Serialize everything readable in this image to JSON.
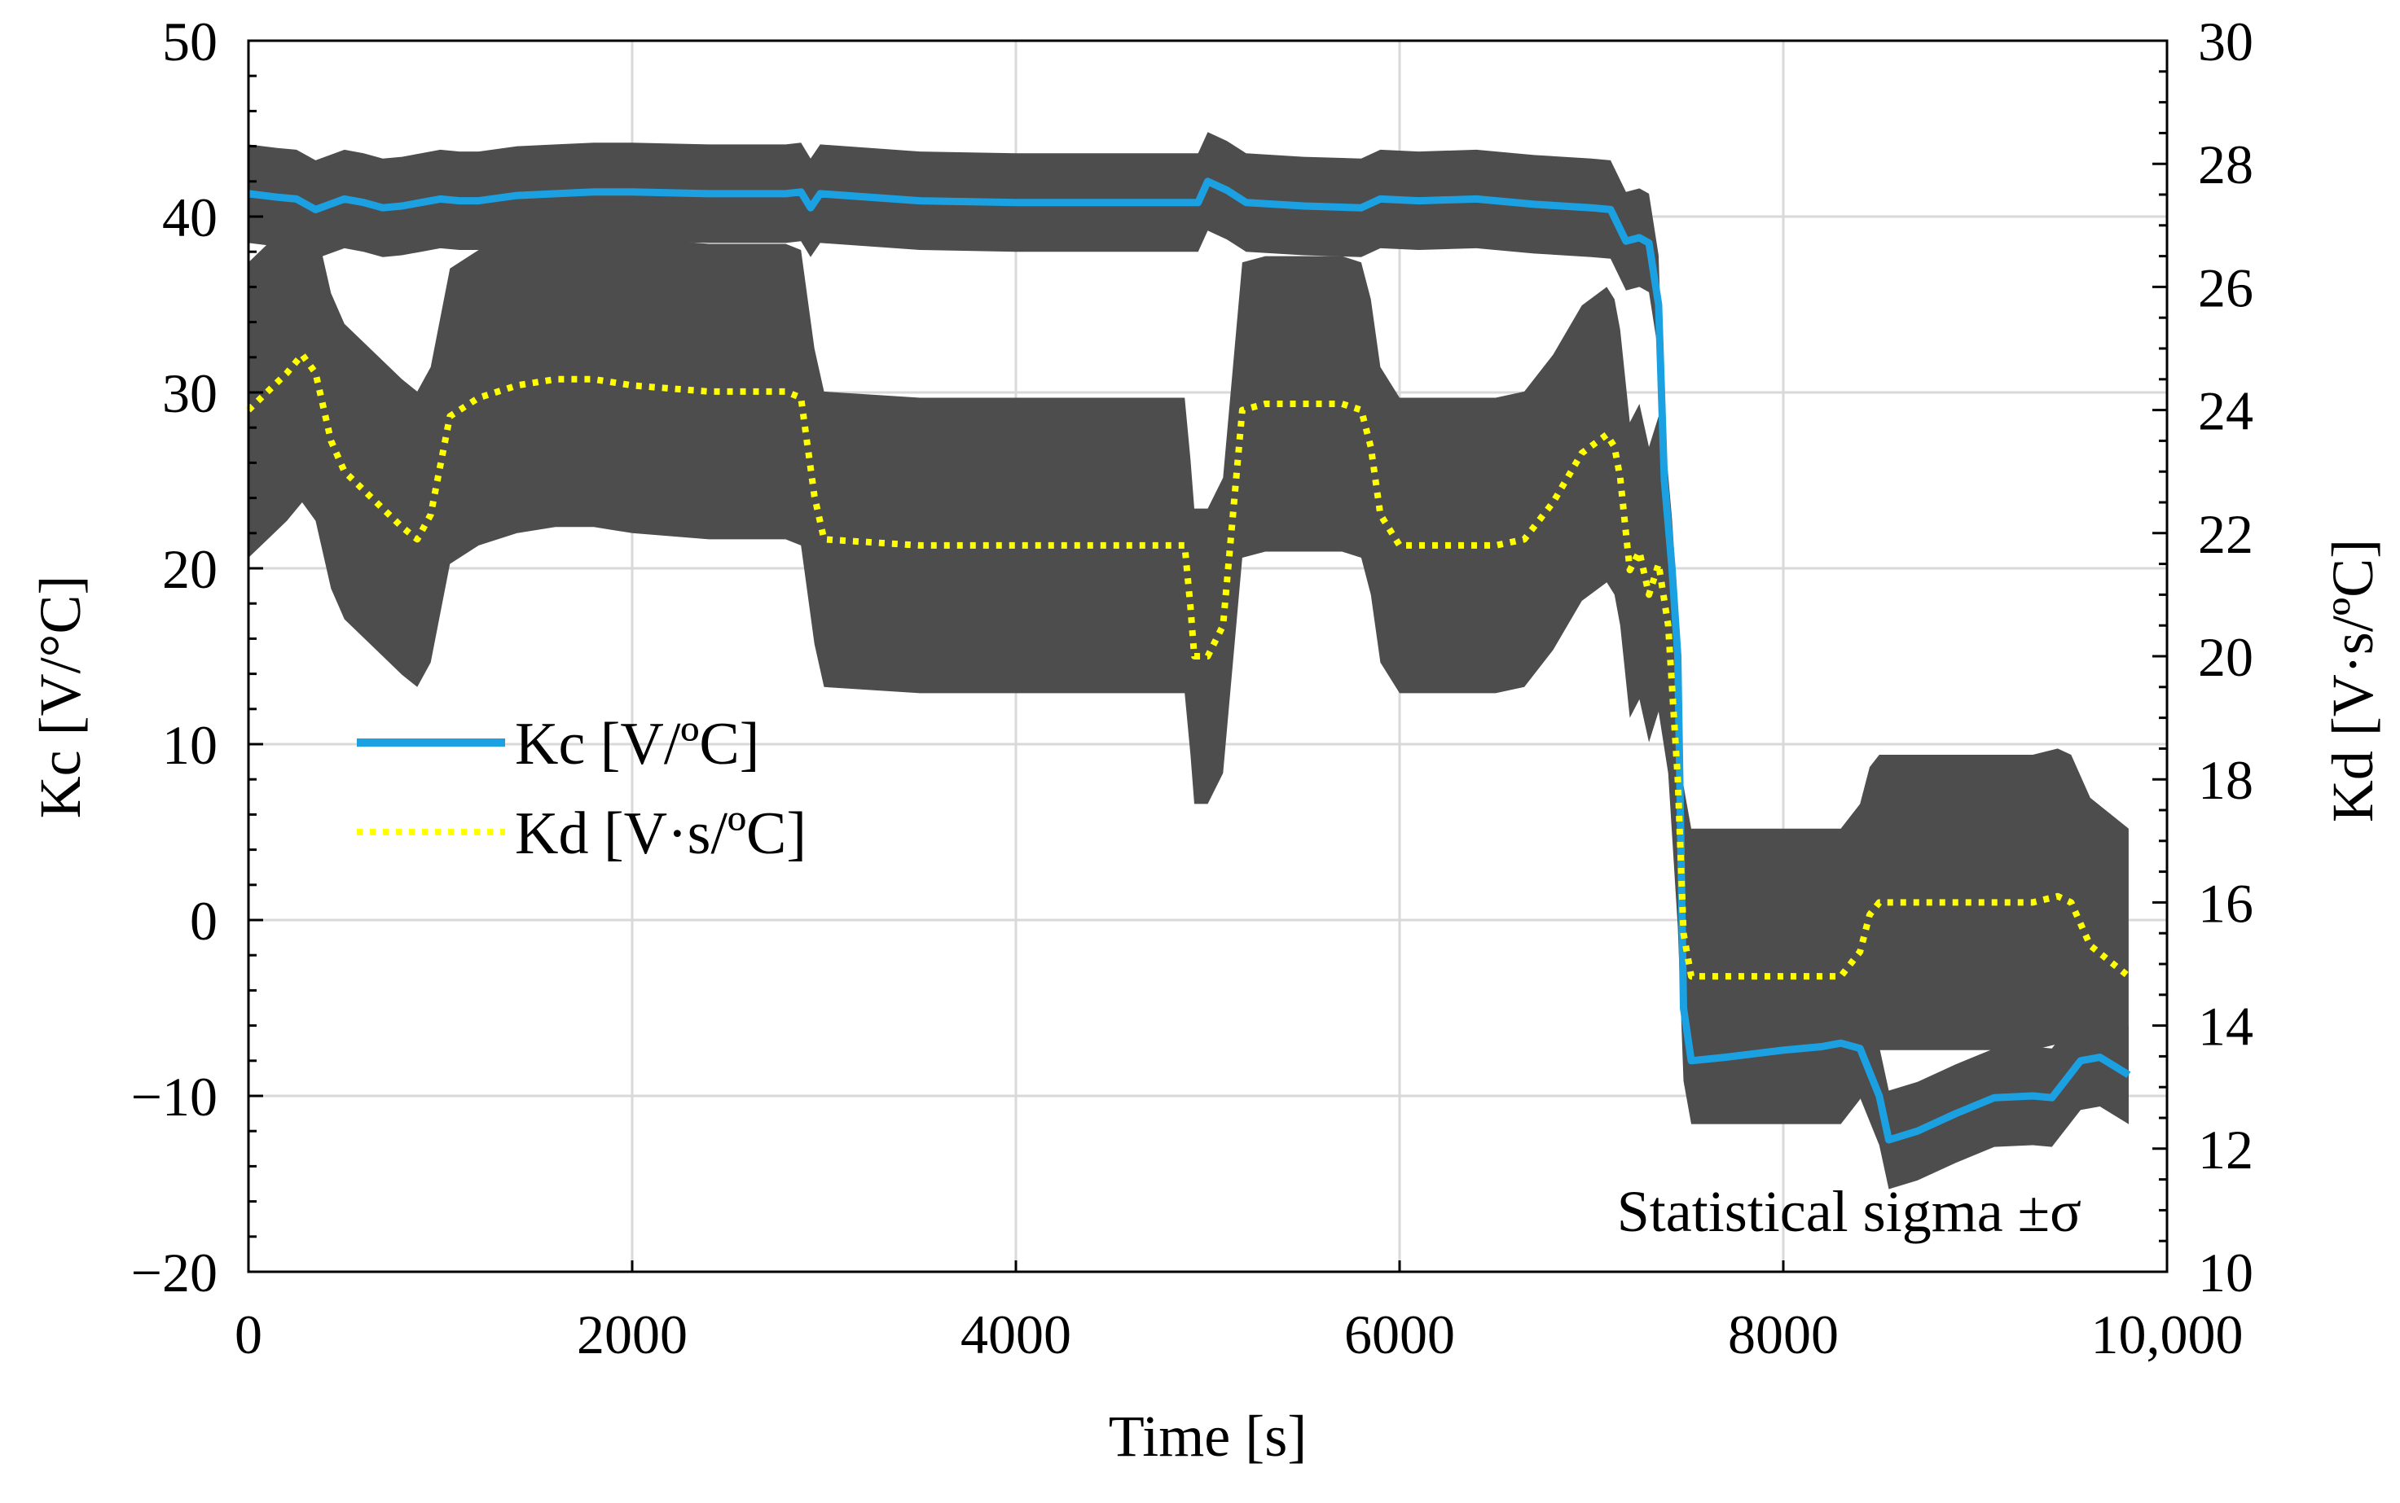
{
  "chart_data": {
    "type": "line",
    "title": "",
    "xlabel": "Time [s]",
    "ylabel": "Kc [V/°C]",
    "y2label": "Kd [V·s/ºC]",
    "xlim": [
      0,
      10000
    ],
    "ylim": [
      -20,
      50
    ],
    "y2lim": [
      10,
      30
    ],
    "xticks": [
      0,
      2000,
      4000,
      6000,
      8000,
      10000
    ],
    "xtick_labels": [
      "0",
      "2000",
      "4000",
      "6000",
      "8000",
      "10,000"
    ],
    "yticks": [
      -20,
      -10,
      0,
      10,
      20,
      30,
      40,
      50
    ],
    "ytick_labels": [
      "−20",
      "−10",
      "0",
      "10",
      "20",
      "30",
      "40",
      "50"
    ],
    "y2ticks": [
      10,
      12,
      14,
      16,
      18,
      20,
      22,
      24,
      26,
      28,
      30
    ],
    "y2tick_labels": [
      "10",
      "12",
      "14",
      "16",
      "18",
      "20",
      "22",
      "24",
      "26",
      "28",
      "30"
    ],
    "grid": true,
    "legend_position": "center-left",
    "annotation": "Statistical sigma ±σ",
    "series": [
      {
        "name": "Kc [V/ºC]",
        "axis": "left",
        "style": "solid",
        "color": "#1BA1E2",
        "band_color": "#4D4D4D",
        "sigma": 2.8,
        "x": [
          0,
          150,
          250,
          350,
          500,
          600,
          700,
          800,
          900,
          1000,
          1100,
          1200,
          1400,
          1600,
          1800,
          2000,
          2400,
          2800,
          2880,
          2930,
          2980,
          3500,
          4000,
          4500,
          4900,
          4950,
          5000,
          5100,
          5200,
          5500,
          5800,
          5900,
          6100,
          6400,
          6700,
          7000,
          7100,
          7180,
          7250,
          7300,
          7350,
          7380,
          7420,
          7450,
          7480,
          7520,
          7700,
          8000,
          8200,
          8300,
          8400,
          8500,
          8550,
          8700,
          8900,
          9100,
          9300,
          9400,
          9550,
          9650,
          9800
        ],
        "values": [
          41.3,
          41.1,
          41.0,
          40.4,
          41.0,
          40.8,
          40.5,
          40.6,
          40.8,
          41.0,
          40.9,
          40.9,
          41.2,
          41.3,
          41.4,
          41.4,
          41.3,
          41.3,
          41.4,
          40.5,
          41.3,
          40.9,
          40.8,
          40.8,
          40.8,
          40.8,
          42.0,
          41.5,
          40.8,
          40.6,
          40.5,
          41.0,
          40.9,
          41.0,
          40.7,
          40.5,
          40.4,
          38.6,
          38.8,
          38.5,
          35.0,
          25.0,
          20.0,
          15.0,
          -5.0,
          -8.0,
          -7.8,
          -7.4,
          -7.2,
          -7.0,
          -7.3,
          -10.0,
          -12.5,
          -12.0,
          -11.0,
          -10.1,
          -10.0,
          -10.1,
          -8.0,
          -7.8,
          -8.8
        ]
      },
      {
        "name": "Kd [V·s/ºC]",
        "axis": "right",
        "style": "dotted",
        "color": "#FFFF00",
        "band_color": "#4D4D4D",
        "sigma": 2.4,
        "x": [
          0,
          100,
          200,
          280,
          350,
          430,
          500,
          600,
          700,
          800,
          880,
          950,
          1050,
          1200,
          1400,
          1600,
          1800,
          2000,
          2400,
          2800,
          2880,
          2950,
          3000,
          3500,
          4000,
          4500,
          4880,
          4910,
          4930,
          5000,
          5080,
          5180,
          5300,
          5500,
          5700,
          5800,
          5850,
          5900,
          6000,
          6200,
          6500,
          6650,
          6800,
          6950,
          7080,
          7120,
          7150,
          7200,
          7250,
          7300,
          7350,
          7400,
          7450,
          7480,
          7520,
          7700,
          8000,
          8100,
          8200,
          8300,
          8400,
          8450,
          8500,
          8700,
          9000,
          9300,
          9430,
          9500,
          9600,
          9800
        ],
        "values": [
          24.0,
          24.3,
          24.6,
          24.9,
          24.6,
          23.5,
          23.0,
          22.7,
          22.4,
          22.1,
          21.9,
          22.3,
          23.9,
          24.2,
          24.4,
          24.5,
          24.5,
          24.4,
          24.3,
          24.3,
          24.2,
          22.6,
          21.9,
          21.8,
          21.8,
          21.8,
          21.8,
          20.8,
          20.0,
          20.0,
          20.5,
          24.0,
          24.1,
          24.1,
          24.1,
          24.0,
          23.4,
          22.3,
          21.8,
          21.8,
          21.8,
          21.9,
          22.5,
          23.3,
          23.6,
          23.4,
          22.9,
          21.4,
          21.7,
          21.0,
          21.5,
          20.5,
          18.0,
          15.5,
          14.8,
          14.8,
          14.8,
          14.8,
          14.8,
          14.8,
          15.2,
          15.8,
          16.0,
          16.0,
          16.0,
          16.0,
          16.1,
          16.0,
          15.3,
          14.8
        ]
      }
    ]
  }
}
